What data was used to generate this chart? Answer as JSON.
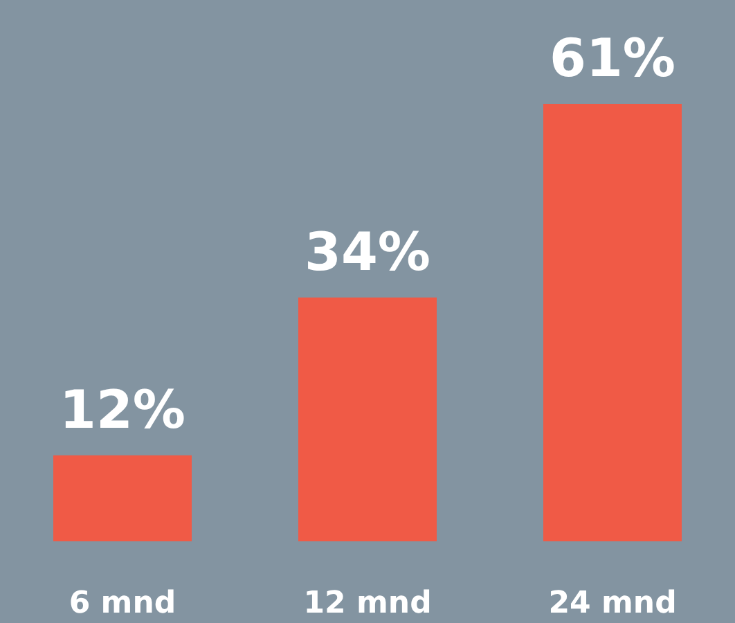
{
  "chart_data": {
    "type": "bar",
    "categories": [
      "6 mnd",
      "12 mnd",
      "24 mnd"
    ],
    "values": [
      12,
      34,
      61
    ],
    "value_labels": [
      "12%",
      "34%",
      "61%"
    ],
    "color": "#f05a46",
    "tick_labels": "x"
  }
}
